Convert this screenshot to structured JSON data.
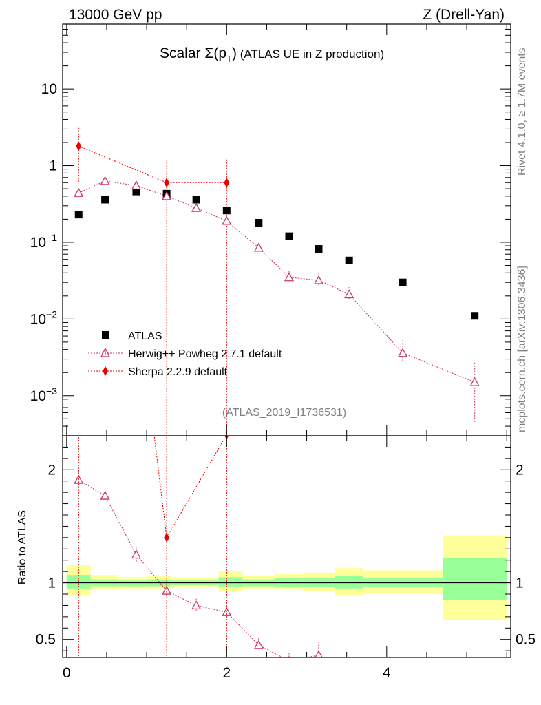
{
  "header": {
    "beam": "13000 GeV pp",
    "process": "Z (Drell-Yan)",
    "plot_title_prefix": "Scalar ",
    "plot_title_suffix": " (ATLAS UE in Z production)",
    "plot_title_sigma": "Σ(p",
    "plot_title_sub": "T",
    "plot_title_close": ")",
    "analysis_id": "(ATLAS_2019_I1736531)",
    "rivet_label": "Rivet 4.1.0, ≥ 1.7M events",
    "source_label": "mcplots.cern.ch [arXiv:1306.3436]"
  },
  "legend": {
    "atlas": "ATLAS",
    "herwig": "Herwig++ Powheg 2.7.1 default",
    "sherpa": "Sherpa 2.2.9 default"
  },
  "ratio_ylabel": "Ratio to ATLAS",
  "colors": {
    "data": "#000000",
    "herwig": "#cc3366",
    "sherpa": "#ee0000",
    "band_inner": "#99ff99",
    "band_outer": "#ffff99"
  },
  "chart_data": {
    "type": "scatter",
    "title": "Scalar Σ(pT) (ATLAS UE in Z production)",
    "xlabel": "",
    "ylabel": "",
    "xlim": [
      -0.05,
      5.55
    ],
    "main_ylim": [
      0.0003,
      70
    ],
    "main_yscale": "log",
    "main_yticks": [
      {
        "v": 10,
        "base": "10",
        "exp": ""
      },
      {
        "v": 1,
        "base": "1",
        "exp": ""
      },
      {
        "v": 0.1,
        "base": "10",
        "exp": "−1"
      },
      {
        "v": 0.01,
        "base": "10",
        "exp": "−2"
      },
      {
        "v": 0.001,
        "base": "10",
        "exp": "−3"
      }
    ],
    "ratio_ylim": [
      0.34,
      2.3
    ],
    "ratio_yticks": [
      {
        "v": 2,
        "label": "2"
      },
      {
        "v": 1,
        "label": "1"
      },
      {
        "v": 0.5,
        "label": "0.5"
      }
    ],
    "xticks": [
      {
        "v": 0,
        "label": "0"
      },
      {
        "v": 2,
        "label": "2"
      },
      {
        "v": 4,
        "label": "4"
      }
    ],
    "bins": [
      [
        0.0,
        0.3
      ],
      [
        0.3,
        0.65
      ],
      [
        0.65,
        1.0
      ],
      [
        1.0,
        1.3
      ],
      [
        1.3,
        1.9
      ],
      [
        1.9,
        2.2
      ],
      [
        2.2,
        2.6
      ],
      [
        2.6,
        2.95
      ],
      [
        2.95,
        3.35
      ],
      [
        3.35,
        3.7
      ],
      [
        3.7,
        4.7
      ],
      [
        4.7,
        5.5
      ]
    ],
    "series": [
      {
        "name": "ATLAS",
        "x": [
          0.15,
          0.48,
          0.87,
          1.25,
          1.62,
          2.0,
          2.4,
          2.78,
          3.15,
          3.53,
          4.2,
          5.1
        ],
        "values": [
          0.23,
          0.36,
          0.46,
          0.43,
          0.36,
          0.26,
          0.18,
          0.12,
          0.082,
          0.058,
          0.03,
          0.011
        ]
      },
      {
        "name": "Herwig++ Powheg 2.7.1 default",
        "x": [
          0.15,
          0.48,
          0.87,
          1.25,
          1.62,
          2.0,
          2.4,
          2.78,
          3.15,
          3.53,
          4.2,
          5.1
        ],
        "values": [
          0.44,
          0.63,
          0.55,
          0.4,
          0.28,
          0.19,
          0.085,
          0.035,
          0.032,
          0.021,
          0.0036,
          0.0015
        ],
        "err_lo": [
          0.42,
          0.61,
          0.53,
          0.38,
          0.265,
          0.178,
          0.079,
          0.03,
          0.027,
          0.018,
          0.0028,
          0.00045
        ],
        "err_hi": [
          0.46,
          0.65,
          0.57,
          0.42,
          0.295,
          0.202,
          0.091,
          0.042,
          0.04,
          0.026,
          0.0053,
          0.0027
        ]
      },
      {
        "name": "Sherpa 2.2.9 default",
        "x": [
          0.15,
          1.25,
          2.0
        ],
        "values": [
          1.8,
          0.6,
          0.6
        ],
        "err_lo": [
          0.6,
          0.0002,
          0.0002
        ],
        "err_hi": [
          3.1,
          1.2,
          1.2
        ]
      }
    ],
    "ratio_series": [
      {
        "name": "Herwig++ Powheg 2.7.1 default",
        "x": [
          0.15,
          0.48,
          0.87,
          1.25,
          1.62,
          2.0,
          2.4,
          2.78,
          3.15
        ],
        "values": [
          1.91,
          1.77,
          1.25,
          0.93,
          0.8,
          0.74,
          0.45,
          0.31,
          0.36
        ],
        "err_lo": [
          1.82,
          1.7,
          1.18,
          0.88,
          0.74,
          0.69,
          0.41,
          0.25,
          0.3
        ],
        "err_hi": [
          2.0,
          1.84,
          1.32,
          0.98,
          0.86,
          0.79,
          0.51,
          0.38,
          0.48
        ]
      },
      {
        "name": "Sherpa 2.2.9 default",
        "x": [
          0.15,
          1.25,
          2.0
        ],
        "values": [
          7.8,
          1.4,
          2.31
        ],
        "err_lo": [
          0.3,
          0.0,
          0.0
        ],
        "err_hi": [
          13.0,
          2.8,
          4.6
        ]
      }
    ],
    "band_inner": [
      [
        0.95,
        1.07
      ],
      [
        0.97,
        1.03
      ],
      [
        0.97,
        1.02
      ],
      [
        0.97,
        1.03
      ],
      [
        0.98,
        1.02
      ],
      [
        0.96,
        1.05
      ],
      [
        0.97,
        1.03
      ],
      [
        0.96,
        1.04
      ],
      [
        0.96,
        1.04
      ],
      [
        0.95,
        1.06
      ],
      [
        0.96,
        1.04
      ],
      [
        0.85,
        1.22
      ]
    ],
    "band_outer": [
      [
        0.89,
        1.16
      ],
      [
        0.94,
        1.07
      ],
      [
        0.95,
        1.05
      ],
      [
        0.95,
        1.06
      ],
      [
        0.96,
        1.04
      ],
      [
        0.92,
        1.1
      ],
      [
        0.95,
        1.06
      ],
      [
        0.94,
        1.08
      ],
      [
        0.93,
        1.09
      ],
      [
        0.89,
        1.13
      ],
      [
        0.9,
        1.11
      ],
      [
        0.67,
        1.42
      ]
    ]
  }
}
